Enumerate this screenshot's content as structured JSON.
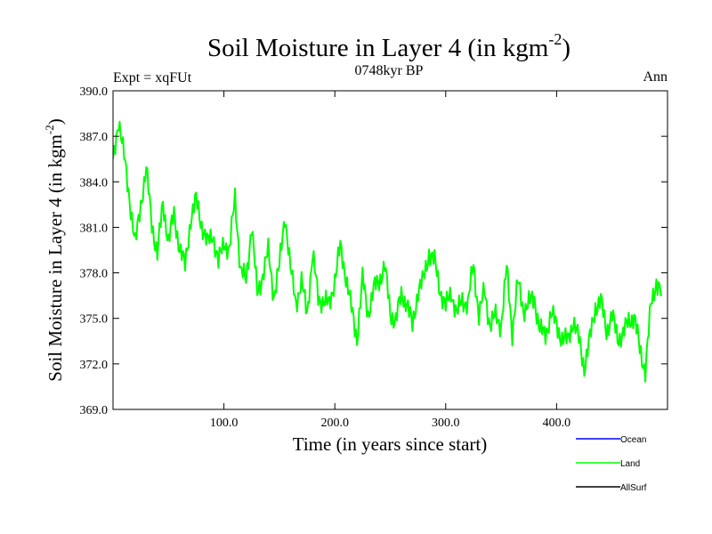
{
  "chart_data": {
    "type": "line",
    "title_main": "Soil Moisture in Layer 4 (in kgm",
    "title_sup": "-2",
    "title_close": ")",
    "subtitle": "0748kyr BP",
    "left_label": "Expt = xqFUt",
    "right_label": "Ann",
    "xlabel": "Time (in years since start)",
    "ylabel_main": "Soil Moisture in Layer 4 (in kgm",
    "ylabel_sup": "-2",
    "ylabel_close": ")",
    "xlim": [
      0,
      500
    ],
    "ylim": [
      369,
      390
    ],
    "x_ticks": [
      100,
      200,
      300,
      400
    ],
    "x_tick_labels": [
      "100.0",
      "200.0",
      "300.0",
      "400.0"
    ],
    "y_ticks": [
      369,
      372,
      375,
      378,
      381,
      384,
      387,
      390
    ],
    "y_tick_labels": [
      "369.0",
      "372.0",
      "375.0",
      "378.0",
      "381.0",
      "384.0",
      "387.0",
      "390.0"
    ],
    "legend": [
      {
        "name": "Ocean",
        "color": "#0000ff"
      },
      {
        "name": "Land",
        "color": "#00ff00"
      },
      {
        "name": "AllSurf",
        "color": "#000000"
      }
    ],
    "series": [
      {
        "name": "Land",
        "color": "#00ff00",
        "x_start": 0,
        "x_step": 5,
        "values": [
          385.2,
          388.2,
          385.6,
          382.9,
          379.8,
          382.6,
          384.8,
          381.3,
          379.2,
          382.6,
          380.1,
          381.8,
          379.7,
          378.4,
          381.6,
          382.8,
          381.2,
          379.9,
          380.6,
          378.6,
          380.1,
          379.4,
          383.1,
          378.1,
          377.5,
          381.2,
          376.6,
          377.9,
          379.4,
          376.5,
          378.4,
          381.9,
          378.2,
          376.1,
          377.3,
          375.4,
          379.2,
          376.4,
          376.1,
          375.9,
          377.6,
          379.7,
          377.8,
          375.6,
          373.7,
          377.6,
          375.3,
          376.9,
          377.5,
          378.5,
          375.3,
          374.9,
          376.5,
          376.1,
          374.4,
          376.9,
          377.5,
          379.4,
          378.7,
          376.9,
          375.7,
          376.8,
          375.2,
          376.3,
          375.9,
          378.6,
          375.2,
          376.8,
          374.6,
          375.1,
          374.6,
          378.3,
          374.1,
          377.4,
          375.6,
          376.0,
          376.3,
          374.2,
          373.9,
          375.4,
          374.5,
          373.7,
          373.5,
          374.9,
          373.6,
          371.8,
          373.6,
          375.8,
          376.1,
          374.2,
          375.2,
          373.7,
          374.0,
          374.8,
          375.2,
          372.9,
          371.6,
          375.8,
          377.5,
          376.5
        ]
      },
      {
        "name": "Ocean",
        "color": "#0000ff",
        "values": []
      },
      {
        "name": "AllSurf",
        "color": "#000000",
        "values": []
      }
    ]
  }
}
